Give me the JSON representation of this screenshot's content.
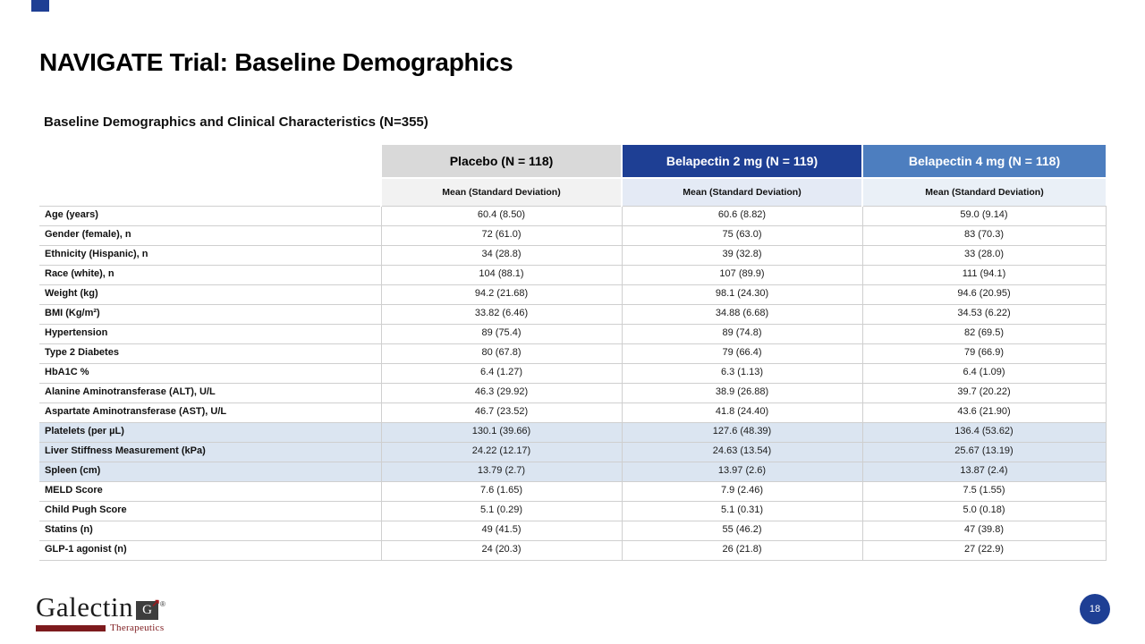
{
  "slide": {
    "title": "NAVIGATE Trial: Baseline Demographics",
    "table_title": "Baseline Demographics and Clinical Characteristics (N=355)",
    "page_number": "18"
  },
  "colors": {
    "navy_accent": "#1e3f94",
    "placebo_header_bg": "#d9d9d9",
    "belapectin2_header_bg": "#1e3f94",
    "belapectin4_header_bg": "#4d7ebf",
    "subheader_gray_bg": "#f2f2f2",
    "subheader_blue1_bg": "#e4eaf5",
    "subheader_blue2_bg": "#eaf0f7",
    "highlight_row_bg": "#dbe5f1"
  },
  "table": {
    "subheader": "Mean (Standard Deviation)",
    "columns": [
      {
        "label": "Placebo (N = 118)",
        "header_bg": "#d9d9d9",
        "header_color": "#000000",
        "subheader_bg": "#f2f2f2"
      },
      {
        "label": "Belapectin 2 mg (N = 119)",
        "header_bg": "#1e3f94",
        "header_color": "#ffffff",
        "subheader_bg": "#e4eaf5"
      },
      {
        "label": "Belapectin 4 mg (N = 118)",
        "header_bg": "#4d7ebf",
        "header_color": "#ffffff",
        "subheader_bg": "#eaf0f7"
      }
    ],
    "rows": [
      {
        "label": "Age (years)",
        "values": [
          "60.4 (8.50)",
          "60.6 (8.82)",
          "59.0 (9.14)"
        ],
        "highlight": false
      },
      {
        "label": "Gender (female), n",
        "values": [
          "72 (61.0)",
          "75 (63.0)",
          "83 (70.3)"
        ],
        "highlight": false
      },
      {
        "label": "Ethnicity (Hispanic), n",
        "values": [
          "34 (28.8)",
          "39 (32.8)",
          "33 (28.0)"
        ],
        "highlight": false
      },
      {
        "label": "Race (white), n",
        "values": [
          "104 (88.1)",
          "107 (89.9)",
          "111 (94.1)"
        ],
        "highlight": false
      },
      {
        "label": "Weight (kg)",
        "values": [
          "94.2 (21.68)",
          "98.1 (24.30)",
          "94.6 (20.95)"
        ],
        "highlight": false
      },
      {
        "label": "BMI (Kg/m²)",
        "values": [
          "33.82 (6.46)",
          "34.88 (6.68)",
          "34.53 (6.22)"
        ],
        "highlight": false
      },
      {
        "label": "Hypertension",
        "values": [
          "89 (75.4)",
          "89 (74.8)",
          "82 (69.5)"
        ],
        "highlight": false
      },
      {
        "label": "Type 2 Diabetes",
        "values": [
          "80 (67.8)",
          "79 (66.4)",
          "79 (66.9)"
        ],
        "highlight": false
      },
      {
        "label": "HbA1C %",
        "values": [
          "6.4 (1.27)",
          "6.3 (1.13)",
          "6.4 (1.09)"
        ],
        "highlight": false
      },
      {
        "label": "Alanine Aminotransferase (ALT), U/L",
        "values": [
          "46.3 (29.92)",
          "38.9 (26.88)",
          "39.7 (20.22)"
        ],
        "highlight": false
      },
      {
        "label": "Aspartate Aminotransferase (AST), U/L",
        "values": [
          "46.7 (23.52)",
          "41.8 (24.40)",
          "43.6 (21.90)"
        ],
        "highlight": false
      },
      {
        "label": "Platelets (per µL)",
        "values": [
          "130.1 (39.66)",
          "127.6 (48.39)",
          "136.4 (53.62)"
        ],
        "highlight": true
      },
      {
        "label": "Liver Stiffness Measurement (kPa)",
        "values": [
          "24.22 (12.17)",
          "24.63 (13.54)",
          "25.67 (13.19)"
        ],
        "highlight": true
      },
      {
        "label": "Spleen (cm)",
        "values": [
          "13.79 (2.7)",
          "13.97 (2.6)",
          "13.87 (2.4)"
        ],
        "highlight": true
      },
      {
        "label": "MELD Score",
        "values": [
          "7.6 (1.65)",
          "7.9 (2.46)",
          "7.5 (1.55)"
        ],
        "highlight": false
      },
      {
        "label": "Child Pugh Score",
        "values": [
          "5.1 (0.29)",
          "5.1 (0.31)",
          "5.0 (0.18)"
        ],
        "highlight": false
      },
      {
        "label": "Statins (n)",
        "values": [
          "49 (41.5)",
          "55 (46.2)",
          "47 (39.8)"
        ],
        "highlight": false
      },
      {
        "label": "GLP-1 agonist (n)",
        "values": [
          "24 (20.3)",
          "26 (21.8)",
          "27 (22.9)"
        ],
        "highlight": false
      }
    ]
  },
  "logo": {
    "name": "Galectin",
    "mark_letter": "G",
    "subtext": "Therapeutics"
  }
}
